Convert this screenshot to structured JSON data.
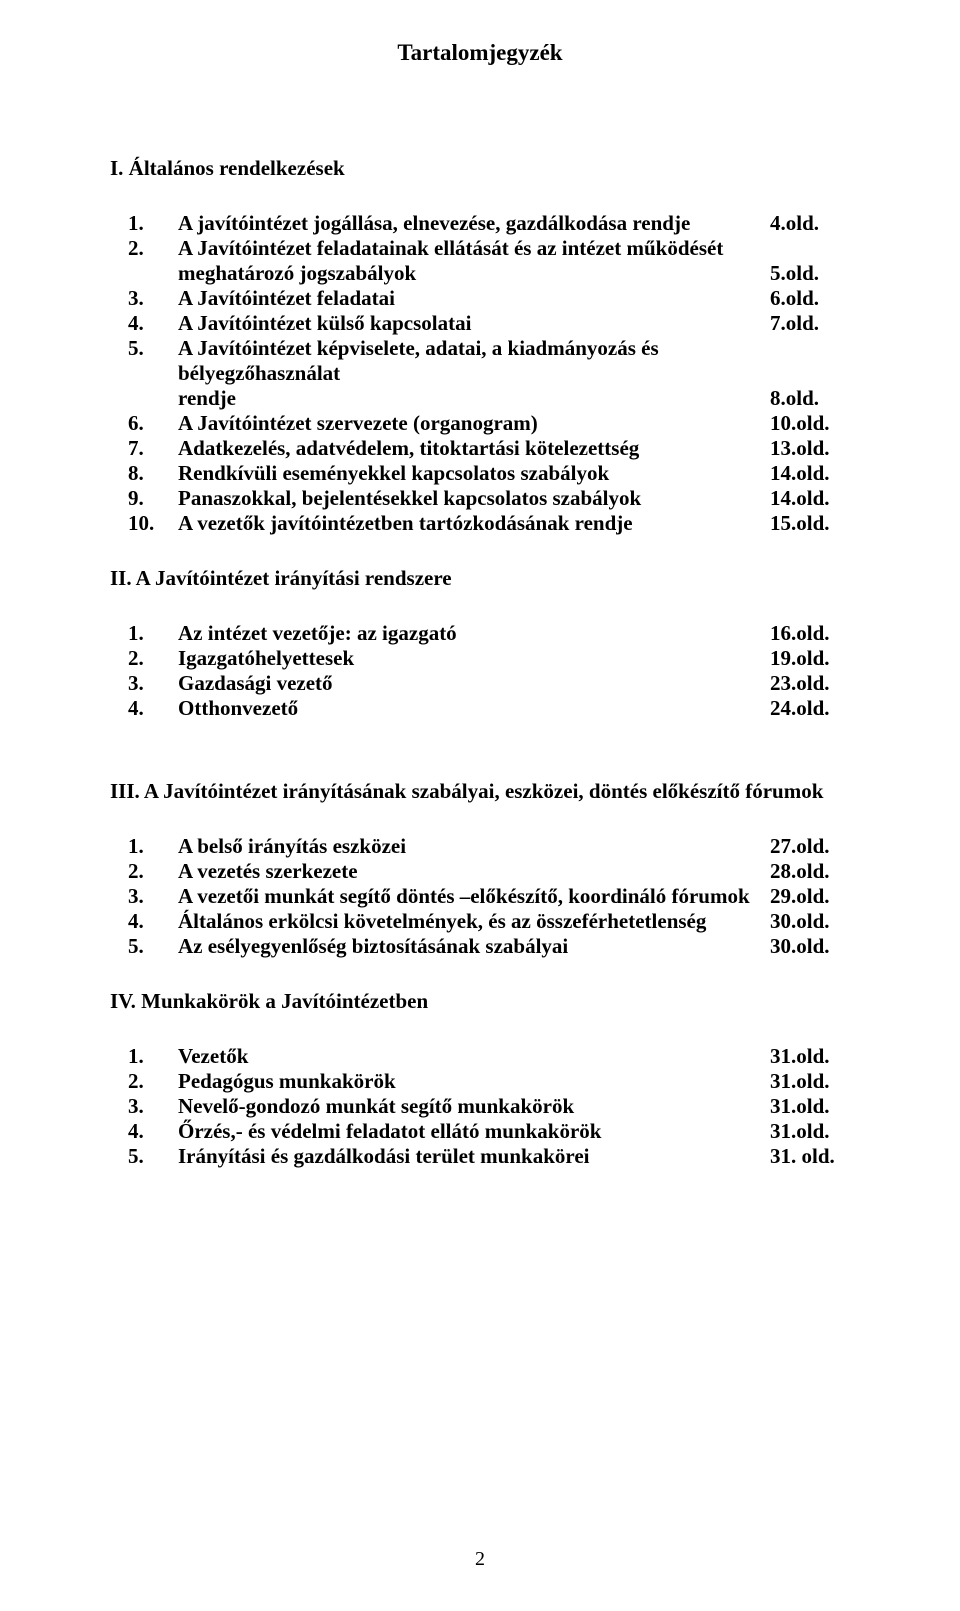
{
  "title": "Tartalomjegyzék",
  "sections": {
    "s1": {
      "heading": "I. Általános rendelkezések",
      "items": [
        {
          "num": "1.",
          "text": "A javítóintézet jogállása, elnevezése, gazdálkodása rendje",
          "page": "4.old."
        },
        {
          "num": "2.",
          "text": "A Javítóintézet feladatainak ellátását és az intézet működését",
          "cont": "meghatározó jogszabályok",
          "page": "5.old."
        },
        {
          "num": "3.",
          "text": "A Javítóintézet feladatai",
          "page": "6.old."
        },
        {
          "num": "4.",
          "text": "A Javítóintézet külső kapcsolatai",
          "page": "7.old."
        },
        {
          "num": "5.",
          "text": "A Javítóintézet képviselete, adatai, a kiadmányozás és bélyegzőhasználat",
          "cont": "rendje",
          "page": "8.old."
        },
        {
          "num": "6.",
          "text": "A Javítóintézet szervezete (organogram)",
          "page": "10.old."
        },
        {
          "num": "7.",
          "text": "Adatkezelés, adatvédelem, titoktartási kötelezettség",
          "page": "13.old."
        },
        {
          "num": "8.",
          "text": "Rendkívüli eseményekkel kapcsolatos szabályok",
          "page": "14.old."
        },
        {
          "num": "9.",
          "text": "Panaszokkal, bejelentésekkel kapcsolatos szabályok",
          "page": "14.old."
        },
        {
          "num": "10.",
          "text": "A vezetők javítóintézetben tartózkodásának rendje",
          "page": "15.old."
        }
      ]
    },
    "s2": {
      "heading": "II. A Javítóintézet irányítási rendszere",
      "items": [
        {
          "num": "1.",
          "text": "Az intézet vezetője: az igazgató",
          "page": "16.old."
        },
        {
          "num": "2.",
          "text": "Igazgatóhelyettesek",
          "page": "19.old."
        },
        {
          "num": "3.",
          "text": "Gazdasági vezető",
          "page": "23.old."
        },
        {
          "num": "4.",
          "text": "Otthonvezető",
          "page": "24.old."
        }
      ]
    },
    "s3": {
      "heading": "III. A Javítóintézet irányításának szabályai, eszközei, döntés előkészítő fórumok",
      "items": [
        {
          "num": "1.",
          "text": "A belső irányítás eszközei",
          "page": "27.old."
        },
        {
          "num": "2.",
          "text": "A vezetés szerkezete",
          "page": "28.old."
        },
        {
          "num": "3.",
          "text": "A vezetői munkát segítő döntés –előkészítő, koordináló fórumok",
          "page": "29.old."
        },
        {
          "num": "4.",
          "text": "Általános erkölcsi követelmények, és az összeférhetetlenség",
          "page": "30.old."
        },
        {
          "num": "5.",
          "text": "Az esélyegyenlőség biztosításának szabályai",
          "page": "30.old."
        }
      ]
    },
    "s4": {
      "heading": "IV. Munkakörök a Javítóintézetben",
      "items": [
        {
          "num": "1.",
          "text": "Vezetők",
          "page": "31.old."
        },
        {
          "num": "2.",
          "text": "Pedagógus munkakörök",
          "page": "31.old."
        },
        {
          "num": "3.",
          "text": "Nevelő-gondozó munkát segítő munkakörök",
          "page": "31.old."
        },
        {
          "num": "4.",
          "text": "Őrzés,- és védelmi feladatot ellátó munkakörök",
          "page": "31.old."
        },
        {
          "num": "5.",
          "text": "Irányítási és gazdálkodási terület munkakörei",
          "page": "31. old."
        }
      ]
    }
  },
  "pageNumber": "2"
}
